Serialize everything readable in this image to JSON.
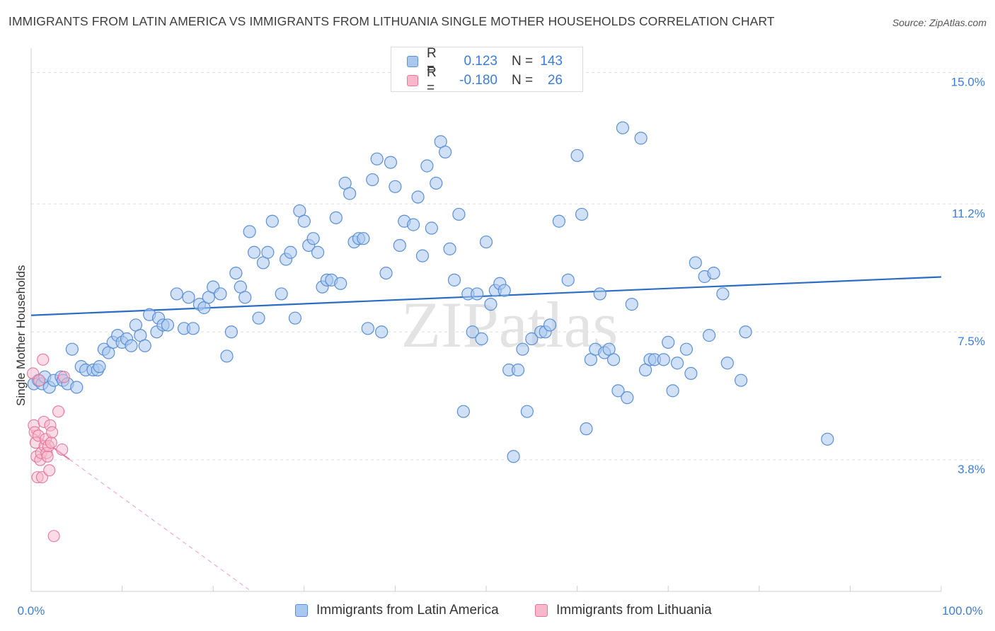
{
  "title": "IMMIGRANTS FROM LATIN AMERICA VS IMMIGRANTS FROM LITHUANIA SINGLE MOTHER HOUSEHOLDS CORRELATION CHART",
  "source": "Source: ZipAtlas.com",
  "watermark": "ZIPatlas",
  "legend_top": {
    "rows": [
      {
        "r_label": "R =",
        "r_value": "0.123",
        "n_label": "N =",
        "n_value": "143"
      },
      {
        "r_label": "R =",
        "r_value": "-0.180",
        "n_label": "N =",
        "n_value": "26"
      }
    ]
  },
  "legend_bottom": {
    "items": [
      "Immigrants from Latin America",
      "Immigrants from Lithuania"
    ]
  },
  "colors": {
    "blue_fill": "#a9c8f0",
    "blue_stroke": "#5b8fd6",
    "blue_line": "#2b6cc4",
    "pink_fill": "#f7b8cb",
    "pink_stroke": "#e5779b",
    "pink_line": "#e8769b",
    "tick_label": "#3d7dd6",
    "grid": "#dddddd"
  },
  "chart_data": {
    "type": "scatter",
    "title": "IMMIGRANTS FROM LATIN AMERICA VS IMMIGRANTS FROM LITHUANIA SINGLE MOTHER HOUSEHOLDS CORRELATION CHART",
    "xlabel": "",
    "ylabel": "Single Mother Households",
    "xlim": [
      0,
      100
    ],
    "ylim": [
      0,
      15.5
    ],
    "x_tick_labels": [
      "0.0%",
      "100.0%"
    ],
    "y_ticks": [
      3.8,
      7.5,
      11.2,
      15.0
    ],
    "y_tick_labels": [
      "3.8%",
      "7.5%",
      "11.2%",
      "15.0%"
    ],
    "grid": true,
    "legend_position": "bottom",
    "series": [
      {
        "name": "Immigrants from Latin America",
        "r": 0.123,
        "n": 143,
        "trend": {
          "x": [
            0,
            100
          ],
          "y": [
            7.98,
            9.09
          ]
        },
        "points": [
          [
            0.3,
            6.0
          ],
          [
            0.8,
            6.1
          ],
          [
            1.2,
            6.0
          ],
          [
            1.5,
            6.2
          ],
          [
            2.0,
            5.9
          ],
          [
            2.5,
            6.1
          ],
          [
            3.3,
            6.2
          ],
          [
            3.5,
            6.1
          ],
          [
            4.0,
            6.0
          ],
          [
            4.5,
            7.0
          ],
          [
            5.0,
            5.9
          ],
          [
            5.5,
            6.5
          ],
          [
            6.0,
            6.4
          ],
          [
            6.8,
            6.4
          ],
          [
            7.3,
            6.4
          ],
          [
            7.5,
            6.5
          ],
          [
            8.0,
            7.0
          ],
          [
            8.5,
            6.9
          ],
          [
            9.0,
            7.2
          ],
          [
            9.5,
            7.4
          ],
          [
            10.0,
            7.2
          ],
          [
            10.5,
            7.3
          ],
          [
            11.0,
            7.1
          ],
          [
            11.5,
            7.7
          ],
          [
            12.0,
            7.4
          ],
          [
            12.5,
            7.1
          ],
          [
            13.0,
            8.0
          ],
          [
            13.8,
            7.5
          ],
          [
            14.0,
            7.9
          ],
          [
            14.5,
            7.7
          ],
          [
            15.0,
            7.7
          ],
          [
            16.0,
            8.6
          ],
          [
            16.8,
            7.6
          ],
          [
            17.3,
            8.5
          ],
          [
            17.8,
            7.6
          ],
          [
            18.5,
            8.3
          ],
          [
            19.0,
            8.2
          ],
          [
            19.5,
            8.5
          ],
          [
            20.0,
            8.8
          ],
          [
            20.8,
            8.6
          ],
          [
            21.5,
            6.8
          ],
          [
            22.0,
            7.5
          ],
          [
            22.5,
            9.2
          ],
          [
            23.0,
            8.8
          ],
          [
            23.5,
            8.5
          ],
          [
            24.0,
            10.4
          ],
          [
            24.5,
            9.8
          ],
          [
            25.0,
            7.9
          ],
          [
            25.5,
            9.5
          ],
          [
            26.0,
            9.8
          ],
          [
            26.5,
            10.7
          ],
          [
            27.5,
            8.6
          ],
          [
            28.0,
            9.6
          ],
          [
            28.5,
            9.8
          ],
          [
            29.0,
            7.9
          ],
          [
            29.5,
            11.0
          ],
          [
            30.0,
            10.7
          ],
          [
            30.5,
            10.0
          ],
          [
            31.0,
            10.2
          ],
          [
            31.5,
            9.8
          ],
          [
            32.0,
            8.8
          ],
          [
            32.5,
            9.0
          ],
          [
            33.0,
            9.0
          ],
          [
            33.5,
            10.8
          ],
          [
            34.0,
            8.9
          ],
          [
            34.5,
            11.8
          ],
          [
            35.0,
            11.5
          ],
          [
            35.5,
            10.1
          ],
          [
            36.0,
            10.2
          ],
          [
            36.5,
            10.2
          ],
          [
            37.0,
            7.6
          ],
          [
            37.5,
            11.9
          ],
          [
            38.0,
            12.5
          ],
          [
            38.5,
            7.5
          ],
          [
            39.0,
            9.2
          ],
          [
            39.5,
            12.4
          ],
          [
            40.0,
            11.7
          ],
          [
            40.5,
            10.0
          ],
          [
            41.0,
            10.7
          ],
          [
            42.0,
            10.6
          ],
          [
            42.5,
            11.4
          ],
          [
            43.0,
            9.7
          ],
          [
            43.5,
            12.3
          ],
          [
            44.0,
            10.5
          ],
          [
            44.5,
            11.8
          ],
          [
            45.0,
            13.0
          ],
          [
            45.5,
            12.7
          ],
          [
            46.0,
            9.9
          ],
          [
            46.5,
            9.0
          ],
          [
            47.0,
            10.9
          ],
          [
            47.5,
            5.2
          ],
          [
            48.0,
            8.6
          ],
          [
            48.5,
            7.5
          ],
          [
            49.0,
            8.6
          ],
          [
            49.5,
            7.3
          ],
          [
            50.0,
            10.1
          ],
          [
            50.5,
            8.3
          ],
          [
            51.0,
            8.7
          ],
          [
            51.5,
            8.9
          ],
          [
            52.0,
            8.7
          ],
          [
            52.5,
            6.4
          ],
          [
            53.0,
            3.9
          ],
          [
            53.5,
            6.4
          ],
          [
            54.0,
            7.0
          ],
          [
            54.5,
            5.2
          ],
          [
            55.0,
            7.3
          ],
          [
            56.0,
            7.5
          ],
          [
            56.5,
            7.5
          ],
          [
            57.0,
            7.7
          ],
          [
            58.0,
            10.7
          ],
          [
            59.0,
            9.0
          ],
          [
            60.0,
            12.6
          ],
          [
            60.5,
            10.9
          ],
          [
            61.0,
            4.7
          ],
          [
            61.5,
            6.7
          ],
          [
            62.0,
            7.0
          ],
          [
            62.5,
            8.6
          ],
          [
            63.0,
            6.9
          ],
          [
            63.5,
            7.0
          ],
          [
            64.0,
            6.7
          ],
          [
            64.5,
            5.8
          ],
          [
            65.0,
            13.4
          ],
          [
            65.5,
            5.6
          ],
          [
            66.0,
            8.3
          ],
          [
            67.0,
            13.1
          ],
          [
            67.5,
            6.4
          ],
          [
            68.0,
            6.7
          ],
          [
            68.5,
            6.7
          ],
          [
            69.5,
            6.7
          ],
          [
            70.0,
            7.2
          ],
          [
            70.5,
            5.8
          ],
          [
            71.0,
            6.6
          ],
          [
            72.0,
            7.0
          ],
          [
            72.5,
            6.3
          ],
          [
            73.0,
            9.5
          ],
          [
            74.0,
            9.1
          ],
          [
            74.5,
            7.4
          ],
          [
            75.0,
            9.2
          ],
          [
            76.0,
            8.6
          ],
          [
            76.5,
            6.6
          ],
          [
            78.0,
            6.1
          ],
          [
            78.5,
            7.5
          ],
          [
            87.5,
            4.4
          ]
        ]
      },
      {
        "name": "Immigrants from Lithuania",
        "r": -0.18,
        "n": 26,
        "trend": {
          "x": [
            0,
            24.2
          ],
          "y": [
            4.62,
            0.0
          ]
        },
        "points": [
          [
            0.2,
            6.3
          ],
          [
            0.3,
            4.8
          ],
          [
            0.4,
            4.6
          ],
          [
            0.5,
            4.3
          ],
          [
            0.6,
            3.9
          ],
          [
            0.7,
            3.3
          ],
          [
            0.8,
            4.5
          ],
          [
            0.9,
            6.1
          ],
          [
            1.0,
            3.8
          ],
          [
            1.1,
            4.0
          ],
          [
            1.2,
            3.3
          ],
          [
            1.3,
            6.7
          ],
          [
            1.4,
            4.9
          ],
          [
            1.5,
            4.2
          ],
          [
            1.6,
            4.4
          ],
          [
            1.7,
            4.0
          ],
          [
            1.8,
            3.9
          ],
          [
            1.9,
            4.2
          ],
          [
            2.0,
            3.5
          ],
          [
            2.1,
            4.8
          ],
          [
            2.2,
            4.3
          ],
          [
            2.3,
            4.6
          ],
          [
            2.5,
            1.6
          ],
          [
            3.0,
            5.2
          ],
          [
            3.4,
            4.1
          ],
          [
            3.6,
            6.2
          ]
        ]
      }
    ]
  }
}
